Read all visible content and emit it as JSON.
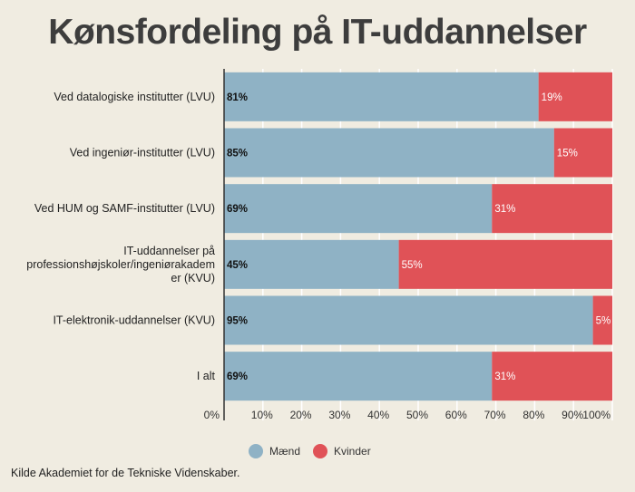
{
  "title": "Kønsfordeling på IT-uddannelser",
  "source": "Kilde Akademiet for de Tekniske Videnskaber.",
  "chart_data": {
    "type": "bar",
    "orientation": "horizontal",
    "stacked": true,
    "categories": [
      "Ved datalogiske institutter (LVU)",
      "Ved ingeniør-institutter (LVU)",
      "Ved HUM og SAMF-institutter (LVU)",
      "IT-uddannelser på professionshøjskoler/ingeniørakademier (KVU)",
      "IT-elektronik-uddannelser (KVU)",
      "I alt"
    ],
    "category_lines": [
      [
        "Ved datalogiske institutter (LVU)"
      ],
      [
        "Ved ingeniør-institutter (LVU)"
      ],
      [
        "Ved HUM og SAMF-institutter (LVU)"
      ],
      [
        "IT-uddannelser på",
        "professionshøjskoler/ingeniørakadem",
        "er (KVU)"
      ],
      [
        "IT-elektronik-uddannelser (KVU)"
      ],
      [
        "I alt"
      ]
    ],
    "series": [
      {
        "name": "Mænd",
        "color": "#8fb2c5",
        "values": [
          81,
          85,
          69,
          45,
          95,
          69
        ]
      },
      {
        "name": "Kvinder",
        "color": "#e05257",
        "values": [
          19,
          15,
          31,
          55,
          5,
          31
        ]
      }
    ],
    "xlim": [
      0,
      100
    ],
    "xticks": [
      "0%",
      "10%",
      "20%",
      "30%",
      "40%",
      "50%",
      "60%",
      "70%",
      "80%",
      "90%",
      "100%"
    ],
    "value_suffix": "%",
    "grid": true,
    "legend_position": "bottom-center"
  }
}
